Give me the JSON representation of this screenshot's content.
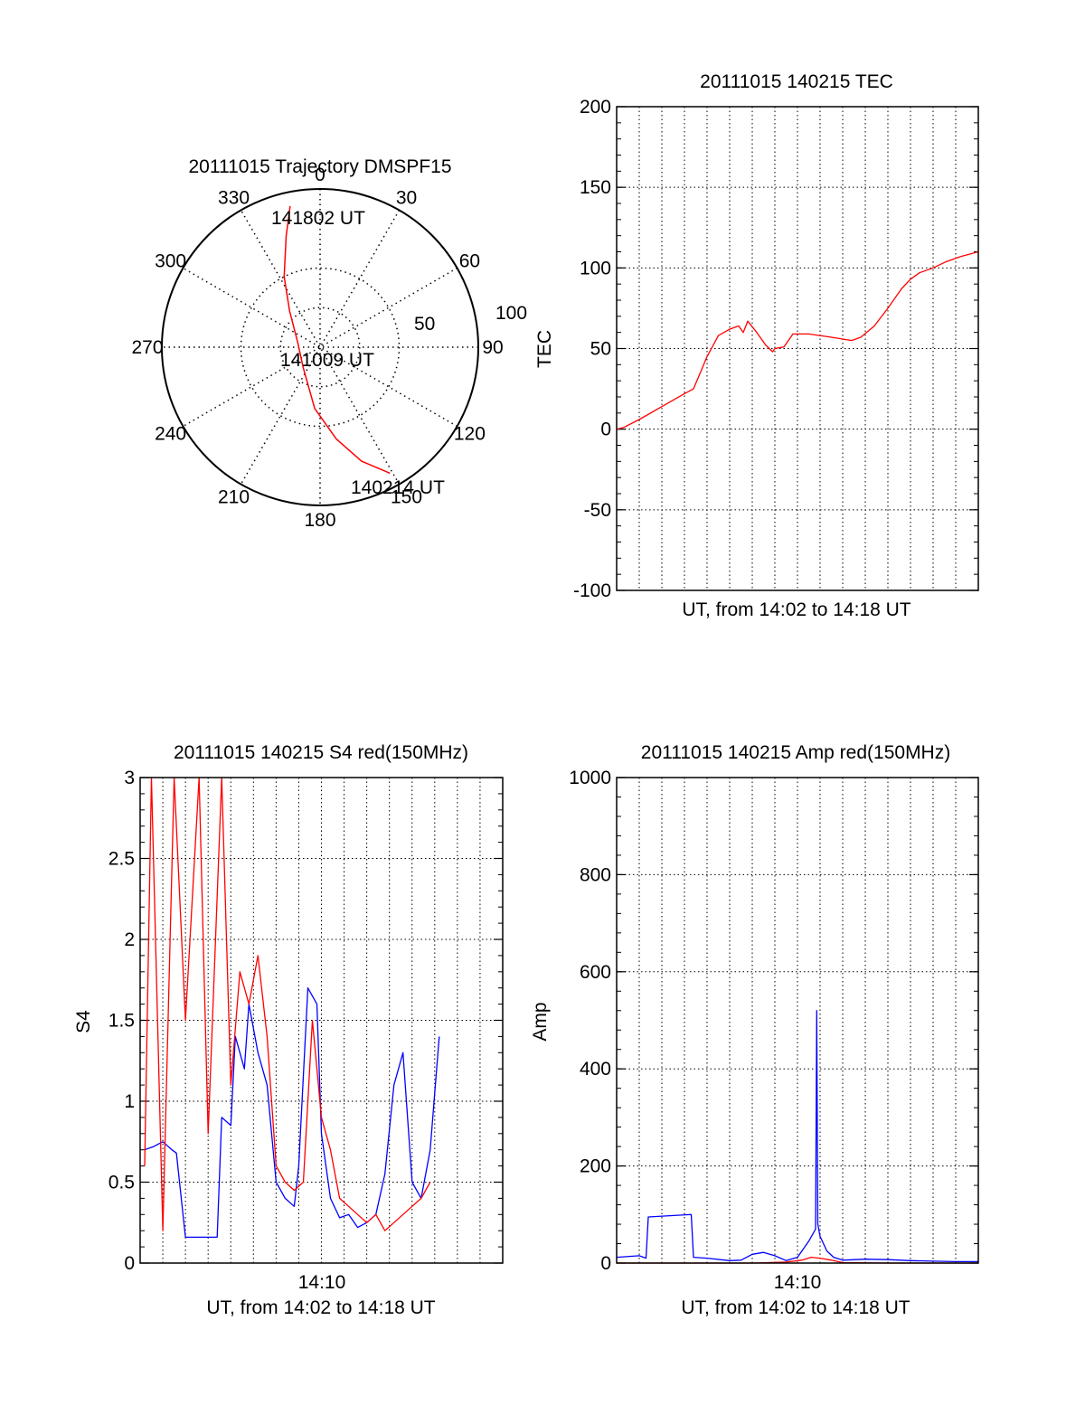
{
  "figure": {
    "colors": {
      "red": "#ff0000",
      "blue": "#0000ff",
      "axis": "#000000",
      "grid": "#000000"
    }
  },
  "chart_data": [
    {
      "type": "polar",
      "title": "20111015 Trajectory DMSPF15",
      "angle_labels": [
        "0",
        "30",
        "60",
        "90",
        "120",
        "150",
        "180",
        "210",
        "240",
        "270",
        "300",
        "330"
      ],
      "radius_labels": [
        "50",
        "100"
      ],
      "rlim": [
        0,
        100
      ],
      "grid": true,
      "trajectory": {
        "color": "#ff0000",
        "points": [
          {
            "azimuth_deg": 151,
            "elevation_deg": 8
          },
          {
            "azimuth_deg": 160,
            "elevation_deg": 21
          },
          {
            "azimuth_deg": 170,
            "elevation_deg": 37
          },
          {
            "azimuth_deg": 185,
            "elevation_deg": 55
          },
          {
            "azimuth_deg": 220,
            "elevation_deg": 75
          },
          {
            "azimuth_deg": 282,
            "elevation_deg": 77
          },
          {
            "azimuth_deg": 320,
            "elevation_deg": 63
          },
          {
            "azimuth_deg": 333,
            "elevation_deg": 45
          },
          {
            "azimuth_deg": 343,
            "elevation_deg": 24
          },
          {
            "azimuth_deg": 348,
            "elevation_deg": 8
          }
        ]
      },
      "annotations": [
        "141802 UT",
        "141009 UT",
        "140214 UT"
      ]
    },
    {
      "type": "line",
      "title": "20111015 140215 TEC",
      "xlabel": "UT, from 14:02 to 14:18 UT",
      "ylabel": "TEC",
      "xlim": [
        0,
        16
      ],
      "ylim": [
        -100,
        200
      ],
      "yticks": [
        "-100",
        "-50",
        "0",
        "50",
        "100",
        "150",
        "200"
      ],
      "grid": true,
      "series": [
        {
          "color": "#ff0000",
          "x": [
            0,
            0.3,
            1,
            2,
            2.5,
            3,
            3.4,
            4,
            4.5,
            5,
            5.4,
            5.6,
            5.8,
            6.2,
            6.6,
            6.9,
            7,
            7.4,
            7.8,
            8.5,
            9.5,
            10.4,
            10.8,
            11.4,
            12,
            12.6,
            13,
            13.4,
            14,
            14.6,
            15.2,
            16
          ],
          "y": [
            0,
            1,
            6,
            14,
            18,
            22,
            25,
            45,
            58,
            62,
            64,
            60,
            67,
            60,
            52,
            48,
            50,
            51,
            59,
            59,
            57,
            55,
            57,
            64,
            75,
            87,
            93,
            97,
            100,
            104,
            107,
            110
          ]
        }
      ]
    },
    {
      "type": "line",
      "title": "20111015 140215 S4 red(150MHz)",
      "xlabel": "UT, from 14:02 to 14:18 UT",
      "ylabel": "S4",
      "xlim": [
        0,
        16
      ],
      "ylim": [
        0,
        3
      ],
      "yticks": [
        "0",
        "0.5",
        "1",
        "1.5",
        "2",
        "2.5",
        "3"
      ],
      "xticks": [
        {
          "value": 8,
          "label": "14:10"
        }
      ],
      "grid": true,
      "series": [
        {
          "color": "#0000ff",
          "x": [
            0.2,
            0.6,
            1,
            1.4,
            1.6,
            2,
            3,
            3.4,
            3.6,
            4,
            4.2,
            4.6,
            4.8,
            5.2,
            5.6,
            6,
            6.4,
            6.8,
            7,
            7.4,
            7.8,
            8,
            8.4,
            8.8,
            9.2,
            9.6,
            10,
            10.4,
            10.8,
            11.2,
            11.6,
            12,
            12.4,
            12.8,
            13.2
          ],
          "y": [
            0.7,
            0.72,
            0.75,
            0.7,
            0.68,
            0.16,
            0.16,
            0.16,
            0.9,
            0.85,
            1.4,
            1.2,
            1.6,
            1.3,
            1.1,
            0.5,
            0.4,
            0.35,
            0.6,
            1.7,
            1.6,
            0.8,
            0.4,
            0.28,
            0.3,
            0.22,
            0.25,
            0.3,
            0.55,
            1.1,
            1.3,
            0.5,
            0.4,
            0.7,
            1.4
          ]
        },
        {
          "color": "#ff0000",
          "x": [
            0.2,
            0.5,
            1,
            1.5,
            2,
            2.6,
            3,
            3.6,
            4,
            4.4,
            4.8,
            5.2,
            5.6,
            6,
            6.4,
            6.8,
            7.2,
            7.6,
            8,
            8.4,
            8.8,
            9.2,
            9.6,
            10,
            10.4,
            10.8,
            11.2,
            11.6,
            12,
            12.4,
            12.8
          ],
          "y": [
            0.6,
            3,
            0.2,
            3,
            1.5,
            3,
            0.8,
            3,
            1.1,
            1.8,
            1.6,
            1.9,
            1.4,
            0.6,
            0.5,
            0.45,
            0.5,
            1.5,
            0.9,
            0.7,
            0.4,
            0.35,
            0.3,
            0.25,
            0.3,
            0.2,
            0.25,
            0.3,
            0.35,
            0.4,
            0.5
          ]
        }
      ]
    },
    {
      "type": "line",
      "title": "20111015 140215 Amp red(150MHz)",
      "xlabel": "UT, from 14:02 to 14:18 UT",
      "ylabel": "Amp",
      "xlim": [
        0,
        16
      ],
      "ylim": [
        0,
        1000
      ],
      "yticks": [
        "0",
        "200",
        "400",
        "600",
        "800",
        "1000"
      ],
      "xticks": [
        {
          "value": 8,
          "label": "14:10"
        }
      ],
      "grid": true,
      "series": [
        {
          "color": "#0000ff",
          "x": [
            0,
            1,
            1.3,
            1.4,
            3.3,
            3.4,
            4,
            5,
            5.5,
            6,
            6.5,
            7,
            7.5,
            8,
            8.5,
            8.8,
            8.85,
            8.9,
            9,
            9.3,
            9.6,
            10,
            11,
            12,
            13,
            14,
            15,
            16
          ],
          "y": [
            12,
            15,
            10,
            95,
            100,
            12,
            10,
            5,
            6,
            18,
            22,
            15,
            5,
            12,
            45,
            70,
            520,
            80,
            55,
            25,
            12,
            6,
            8,
            7,
            5,
            4,
            3,
            3
          ]
        },
        {
          "color": "#ff0000",
          "x": [
            0,
            2,
            4,
            6,
            7.5,
            8.2,
            8.6,
            9,
            9.5,
            10,
            12,
            14,
            16
          ],
          "y": [
            0,
            0,
            0,
            0,
            2,
            6,
            12,
            10,
            6,
            1,
            0,
            0,
            0
          ]
        }
      ]
    }
  ]
}
